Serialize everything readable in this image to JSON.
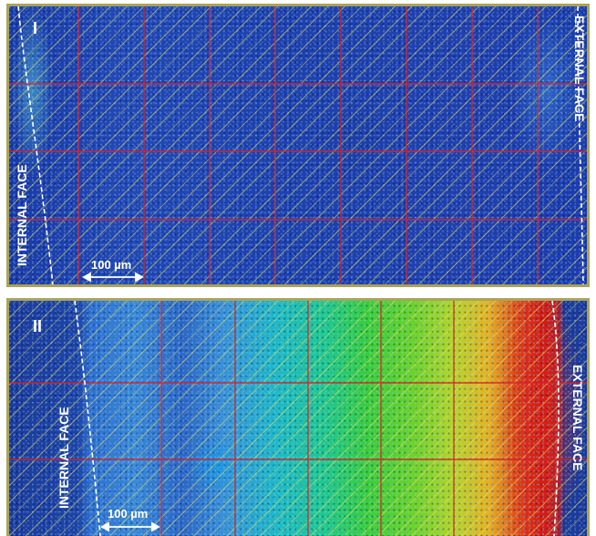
{
  "panels": [
    {
      "id_label": "I",
      "internal_face_label": "INTERNAL FACE",
      "external_face_label": "EXTERNAL FACE",
      "scale_bar_label": "100 µm"
    },
    {
      "id_label": "II",
      "internal_face_label": "INTERNAL FACE",
      "external_face_label": "EXTERNAL FACE",
      "scale_bar_label": "100 µm"
    }
  ],
  "colors": {
    "grid_line": "#d9262b",
    "boundary_line": "#ffffff",
    "hatch": "#ebe15a",
    "panel_border": "#a9a45a"
  }
}
